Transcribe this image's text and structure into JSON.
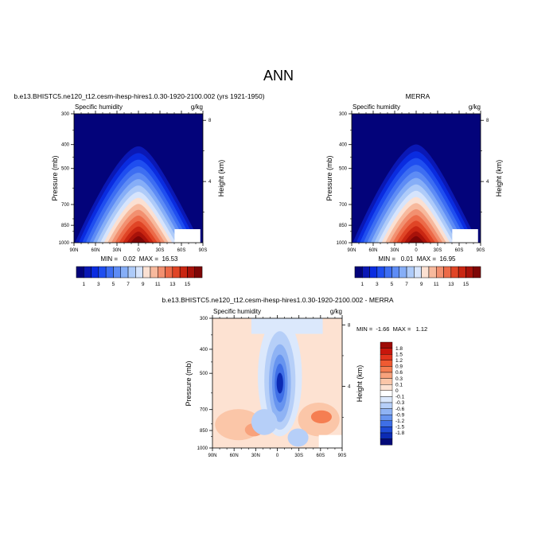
{
  "page": {
    "title": "ANN"
  },
  "chart_data": [
    {
      "type": "heatmap",
      "title": "b.e13.BHISTC5.ne120_t12.cesm-ihesp-hires1.0.30-1920-2100.002 (yrs 1921-1950)",
      "left_string": "Specific humidity",
      "right_string": "g/kg",
      "xlabel": "",
      "ylabel": "Pressure (mb)",
      "ylabel_right": "Height (km)",
      "xticks": [
        "90N",
        "60N",
        "30N",
        "0",
        "30S",
        "60S",
        "90S"
      ],
      "yticks": [
        300,
        400,
        500,
        700,
        850,
        1000
      ],
      "yticks_right": [
        8,
        4
      ],
      "ylim": [
        1000,
        300
      ],
      "log_y": true,
      "min_max_text": "MIN =   0.02  MAX =  16.53",
      "min": 0.02,
      "max": 16.53
    },
    {
      "type": "heatmap",
      "title": "MERRA",
      "left_string": "Specific humidity",
      "right_string": "g/kg",
      "xlabel": "",
      "ylabel": "Pressure (mb)",
      "ylabel_right": "Height (km)",
      "xticks": [
        "90N",
        "60N",
        "30N",
        "0",
        "30S",
        "60S",
        "90S"
      ],
      "yticks": [
        300,
        400,
        500,
        700,
        850,
        1000
      ],
      "yticks_right": [
        8,
        4
      ],
      "ylim": [
        1000,
        300
      ],
      "log_y": true,
      "min_max_text": "MIN =   0.01  MAX =  16.95",
      "min": 0.01,
      "max": 16.95
    },
    {
      "type": "heatmap",
      "title": "b.e13.BHISTC5.ne120_t12.cesm-ihesp-hires1.0.30-1920-2100.002 - MERRA",
      "left_string": "Specific humidity",
      "right_string": "g/kg",
      "xlabel": "",
      "ylabel": "Pressure (mb)",
      "ylabel_right": "Height (km)",
      "xticks": [
        "90N",
        "60N",
        "30N",
        "0",
        "30S",
        "60S",
        "90S"
      ],
      "yticks": [
        300,
        400,
        500,
        700,
        850,
        1000
      ],
      "yticks_right": [
        8,
        4
      ],
      "ylim": [
        1000,
        300
      ],
      "log_y": true,
      "min_max_text": "MIN =  -1.66  MAX =   1.12",
      "min": -1.66,
      "max": 1.12
    }
  ],
  "colorbars": {
    "absolute": {
      "labels": [
        "1",
        "3",
        "5",
        "7",
        "9",
        "11",
        "13",
        "15"
      ],
      "colors": [
        "#03037a",
        "#0a18b5",
        "#0a2ce0",
        "#1f4ef0",
        "#3d6ef2",
        "#5e8cf5",
        "#86aef7",
        "#aecbf9",
        "#d6e4fc",
        "#fbe0d2",
        "#f7b99d",
        "#f29070",
        "#ec6a48",
        "#e04526",
        "#c92612",
        "#a8120a",
        "#7e0606"
      ]
    },
    "difference": {
      "labels": [
        "1.8",
        "1.5",
        "1.2",
        "0.9",
        "0.6",
        "0.3",
        "0.1",
        "0",
        "-0.1",
        "-0.3",
        "-0.6",
        "-0.9",
        "-1.2",
        "-1.5",
        "-1.8"
      ],
      "colors": [
        "#9e0b06",
        "#c8160c",
        "#e1341c",
        "#ef5a32",
        "#f57e52",
        "#f8a27c",
        "#fbc6a8",
        "#fde2d2",
        "#ffffff",
        "#dbe8fc",
        "#b6cff8",
        "#8fb3f4",
        "#6794ef",
        "#3f6fe6",
        "#1f4bd6",
        "#0c2bb4",
        "#040a78"
      ]
    }
  }
}
